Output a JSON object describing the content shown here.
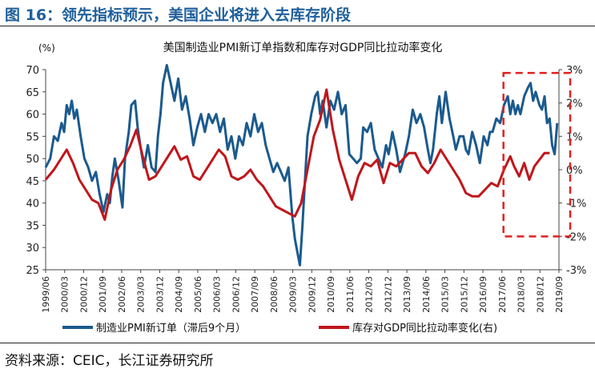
{
  "figure": {
    "title": "图 16：领先指标预示，美国企业将进入去库存阶段",
    "source": "资料来源：CEIC，长江证券研究所"
  },
  "colors": {
    "blue": "#1b5a8e",
    "red": "#c0161b",
    "box": "#e02020",
    "title": "#1f5f9a"
  },
  "chart_data": {
    "type": "line",
    "title": "美国制造业PMI新订单指数和库存对GDP同比拉动率变化",
    "left_axis": {
      "unit": "(%)",
      "ylim": [
        25,
        70
      ],
      "ticks": [
        "25",
        "30",
        "35",
        "40",
        "45",
        "50",
        "55",
        "60",
        "65",
        "70"
      ]
    },
    "right_axis": {
      "ylim": [
        -3,
        3
      ],
      "ticks": [
        "-3%",
        "-2%",
        "-1%",
        "0%",
        "1%",
        "2%",
        "3%"
      ]
    },
    "x_ticks": [
      "1999/06",
      "2000/03",
      "2000/12",
      "2001/09",
      "2002/06",
      "2003/03",
      "2003/12",
      "2004/09",
      "2005/06",
      "2006/03",
      "2006/12",
      "2007/09",
      "2008/06",
      "2009/03",
      "2009/12",
      "2010/09",
      "2011/06",
      "2012/03",
      "2012/12",
      "2013/09",
      "2014/06",
      "2015/03",
      "2015/12",
      "2016/09",
      "2017/06",
      "2018/03",
      "2018/12",
      "2019/09"
    ],
    "x_range": [
      1999.42,
      2019.67
    ],
    "series": [
      {
        "name": "制造业PMI新订单（滞后9个月）",
        "axis": "left",
        "points": [
          [
            1999.42,
            48
          ],
          [
            1999.6,
            50
          ],
          [
            1999.75,
            55
          ],
          [
            1999.9,
            54
          ],
          [
            2000.05,
            58
          ],
          [
            2000.15,
            56
          ],
          [
            2000.25,
            62
          ],
          [
            2000.35,
            60
          ],
          [
            2000.45,
            63
          ],
          [
            2000.55,
            59
          ],
          [
            2000.65,
            61
          ],
          [
            2000.8,
            55
          ],
          [
            2000.95,
            50
          ],
          [
            2001.1,
            48
          ],
          [
            2001.25,
            45
          ],
          [
            2001.4,
            47
          ],
          [
            2001.55,
            42
          ],
          [
            2001.7,
            38
          ],
          [
            2001.85,
            42
          ],
          [
            2001.95,
            40
          ],
          [
            2002.05,
            46
          ],
          [
            2002.15,
            50
          ],
          [
            2002.3,
            45
          ],
          [
            2002.45,
            39
          ],
          [
            2002.55,
            50
          ],
          [
            2002.7,
            56
          ],
          [
            2002.8,
            62
          ],
          [
            2002.95,
            63
          ],
          [
            2003.05,
            57
          ],
          [
            2003.15,
            53
          ],
          [
            2003.3,
            48
          ],
          [
            2003.45,
            53
          ],
          [
            2003.6,
            48
          ],
          [
            2003.75,
            47
          ],
          [
            2003.85,
            55
          ],
          [
            2003.95,
            60
          ],
          [
            2004.05,
            67
          ],
          [
            2004.2,
            71
          ],
          [
            2004.35,
            67
          ],
          [
            2004.5,
            63
          ],
          [
            2004.65,
            68
          ],
          [
            2004.8,
            61
          ],
          [
            2004.95,
            64
          ],
          [
            2005.1,
            59
          ],
          [
            2005.25,
            53
          ],
          [
            2005.4,
            57
          ],
          [
            2005.55,
            60
          ],
          [
            2005.7,
            56
          ],
          [
            2005.85,
            60
          ],
          [
            2006.0,
            58
          ],
          [
            2006.15,
            60
          ],
          [
            2006.3,
            56
          ],
          [
            2006.45,
            59
          ],
          [
            2006.6,
            52
          ],
          [
            2006.75,
            55
          ],
          [
            2006.9,
            50
          ],
          [
            2007.05,
            55
          ],
          [
            2007.2,
            53
          ],
          [
            2007.35,
            58
          ],
          [
            2007.5,
            55
          ],
          [
            2007.65,
            60
          ],
          [
            2007.8,
            56
          ],
          [
            2007.95,
            58
          ],
          [
            2008.1,
            53
          ],
          [
            2008.25,
            50
          ],
          [
            2008.4,
            47
          ],
          [
            2008.55,
            49
          ],
          [
            2008.7,
            47
          ],
          [
            2008.85,
            45
          ],
          [
            2009.0,
            48
          ],
          [
            2009.15,
            37
          ],
          [
            2009.25,
            32
          ],
          [
            2009.35,
            29
          ],
          [
            2009.45,
            26
          ],
          [
            2009.55,
            35
          ],
          [
            2009.65,
            45
          ],
          [
            2009.75,
            55
          ],
          [
            2009.9,
            60
          ],
          [
            2010.05,
            64
          ],
          [
            2010.15,
            65
          ],
          [
            2010.25,
            60
          ],
          [
            2010.35,
            63
          ],
          [
            2010.5,
            57
          ],
          [
            2010.65,
            63
          ],
          [
            2010.8,
            61
          ],
          [
            2010.95,
            65
          ],
          [
            2011.1,
            60
          ],
          [
            2011.25,
            62
          ],
          [
            2011.4,
            51
          ],
          [
            2011.55,
            50
          ],
          [
            2011.7,
            49
          ],
          [
            2011.85,
            50
          ],
          [
            2011.95,
            57
          ],
          [
            2012.1,
            56
          ],
          [
            2012.25,
            58
          ],
          [
            2012.4,
            52
          ],
          [
            2012.55,
            50
          ],
          [
            2012.7,
            48
          ],
          [
            2012.85,
            53
          ],
          [
            2012.95,
            51
          ],
          [
            2013.1,
            56
          ],
          [
            2013.25,
            52
          ],
          [
            2013.4,
            47
          ],
          [
            2013.5,
            49
          ],
          [
            2013.6,
            51
          ],
          [
            2013.75,
            55
          ],
          [
            2013.9,
            61
          ],
          [
            2014.05,
            58
          ],
          [
            2014.2,
            60
          ],
          [
            2014.35,
            57
          ],
          [
            2014.5,
            52
          ],
          [
            2014.6,
            49
          ],
          [
            2014.7,
            52
          ],
          [
            2014.85,
            60
          ],
          [
            2014.95,
            64
          ],
          [
            2015.05,
            58
          ],
          [
            2015.2,
            65
          ],
          [
            2015.35,
            59
          ],
          [
            2015.5,
            55
          ],
          [
            2015.6,
            52
          ],
          [
            2015.75,
            55
          ],
          [
            2015.9,
            55
          ],
          [
            2016.0,
            52
          ],
          [
            2016.1,
            51
          ],
          [
            2016.25,
            56
          ],
          [
            2016.4,
            53
          ],
          [
            2016.55,
            49
          ],
          [
            2016.7,
            55
          ],
          [
            2016.85,
            53
          ],
          [
            2016.95,
            56
          ],
          [
            2017.05,
            56
          ],
          [
            2017.2,
            59
          ],
          [
            2017.35,
            58
          ],
          [
            2017.5,
            62
          ],
          [
            2017.65,
            64
          ],
          [
            2017.75,
            60
          ],
          [
            2017.85,
            63
          ],
          [
            2017.95,
            60
          ],
          [
            2018.05,
            62
          ],
          [
            2018.15,
            60
          ],
          [
            2018.3,
            64
          ],
          [
            2018.45,
            66
          ],
          [
            2018.55,
            67
          ],
          [
            2018.65,
            63
          ],
          [
            2018.75,
            65
          ],
          [
            2018.9,
            62
          ],
          [
            2019.0,
            61
          ],
          [
            2019.1,
            64
          ],
          [
            2019.2,
            58
          ],
          [
            2019.3,
            59
          ],
          [
            2019.4,
            53
          ],
          [
            2019.5,
            51
          ],
          [
            2019.6,
            58
          ]
        ]
      },
      {
        "name": "库存对GDP同比拉动率变化(右)",
        "axis": "right",
        "points": [
          [
            1999.42,
            -0.3
          ],
          [
            1999.75,
            0.0
          ],
          [
            2000.0,
            0.3
          ],
          [
            2000.25,
            0.6
          ],
          [
            2000.5,
            0.2
          ],
          [
            2000.75,
            -0.3
          ],
          [
            2001.0,
            -0.6
          ],
          [
            2001.25,
            -0.9
          ],
          [
            2001.5,
            -1.0
          ],
          [
            2001.75,
            -1.5
          ],
          [
            2002.0,
            -0.6
          ],
          [
            2002.25,
            0.0
          ],
          [
            2002.5,
            0.3
          ],
          [
            2002.75,
            0.7
          ],
          [
            2003.0,
            1.2
          ],
          [
            2003.25,
            0.4
          ],
          [
            2003.5,
            -0.3
          ],
          [
            2003.75,
            -0.2
          ],
          [
            2004.0,
            0.1
          ],
          [
            2004.25,
            0.4
          ],
          [
            2004.5,
            0.7
          ],
          [
            2004.75,
            0.3
          ],
          [
            2005.0,
            0.4
          ],
          [
            2005.25,
            -0.2
          ],
          [
            2005.5,
            -0.3
          ],
          [
            2005.75,
            0.0
          ],
          [
            2006.0,
            0.3
          ],
          [
            2006.25,
            0.6
          ],
          [
            2006.5,
            0.4
          ],
          [
            2006.75,
            -0.2
          ],
          [
            2007.0,
            -0.3
          ],
          [
            2007.25,
            -0.2
          ],
          [
            2007.5,
            0.0
          ],
          [
            2007.75,
            -0.3
          ],
          [
            2008.0,
            -0.5
          ],
          [
            2008.25,
            -0.8
          ],
          [
            2008.5,
            -1.1
          ],
          [
            2008.75,
            -1.2
          ],
          [
            2009.0,
            -1.3
          ],
          [
            2009.25,
            -1.4
          ],
          [
            2009.5,
            -1.0
          ],
          [
            2009.75,
            0.0
          ],
          [
            2010.0,
            1.0
          ],
          [
            2010.25,
            1.5
          ],
          [
            2010.5,
            2.4
          ],
          [
            2010.75,
            1.2
          ],
          [
            2011.0,
            0.3
          ],
          [
            2011.25,
            -0.3
          ],
          [
            2011.5,
            -0.9
          ],
          [
            2011.75,
            -0.2
          ],
          [
            2012.0,
            0.2
          ],
          [
            2012.25,
            0.1
          ],
          [
            2012.5,
            0.3
          ],
          [
            2012.75,
            -0.4
          ],
          [
            2013.0,
            0.2
          ],
          [
            2013.25,
            0.1
          ],
          [
            2013.5,
            0.3
          ],
          [
            2013.75,
            0.5
          ],
          [
            2014.0,
            0.5
          ],
          [
            2014.25,
            0.1
          ],
          [
            2014.5,
            -0.1
          ],
          [
            2014.75,
            0.2
          ],
          [
            2015.0,
            0.6
          ],
          [
            2015.25,
            0.3
          ],
          [
            2015.5,
            0.0
          ],
          [
            2015.75,
            -0.3
          ],
          [
            2016.0,
            -0.7
          ],
          [
            2016.25,
            -0.8
          ],
          [
            2016.5,
            -0.8
          ],
          [
            2016.75,
            -0.6
          ],
          [
            2017.0,
            -0.4
          ],
          [
            2017.25,
            -0.5
          ],
          [
            2017.5,
            0.0
          ],
          [
            2017.75,
            0.4
          ],
          [
            2017.9,
            0.1
          ],
          [
            2018.1,
            -0.2
          ],
          [
            2018.3,
            0.2
          ],
          [
            2018.5,
            -0.3
          ],
          [
            2018.7,
            0.1
          ],
          [
            2018.9,
            0.3
          ],
          [
            2019.1,
            0.5
          ],
          [
            2019.3,
            0.5
          ]
        ]
      }
    ],
    "legend": [
      "制造业PMI新订单（滞后9个月）",
      "库存对GDP同比拉动率变化(右)"
    ],
    "legend_position": "bottom",
    "annotation": "red dashed box highlighting 2017/09–2019/09"
  }
}
